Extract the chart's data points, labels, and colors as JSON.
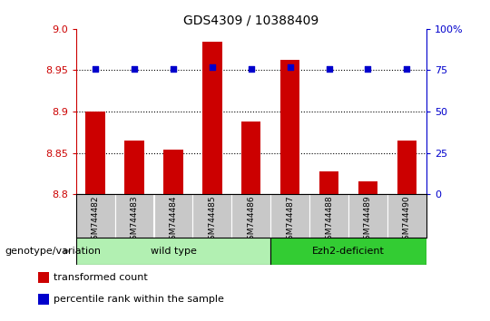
{
  "title": "GDS4309 / 10388409",
  "samples": [
    "GSM744482",
    "GSM744483",
    "GSM744484",
    "GSM744485",
    "GSM744486",
    "GSM744487",
    "GSM744488",
    "GSM744489",
    "GSM744490"
  ],
  "transformed_count": [
    8.9,
    8.865,
    8.854,
    8.985,
    8.888,
    8.962,
    8.828,
    8.815,
    8.865
  ],
  "percentile_rank": [
    76,
    76,
    76,
    77,
    76,
    77,
    76,
    76,
    76
  ],
  "ylim_left": [
    8.8,
    9.0
  ],
  "ylim_right": [
    0,
    100
  ],
  "yticks_left": [
    8.8,
    8.85,
    8.9,
    8.95,
    9.0
  ],
  "yticks_right": [
    0,
    25,
    50,
    75,
    100
  ],
  "groups": [
    {
      "label": "wild type",
      "start": 0,
      "end": 4,
      "color": "#b2f0b2"
    },
    {
      "label": "Ezh2-deficient",
      "start": 5,
      "end": 8,
      "color": "#33cc33"
    }
  ],
  "bar_color": "#CC0000",
  "dot_color": "#0000CC",
  "tick_bg": "#C8C8C8",
  "left_axis_color": "#CC0000",
  "right_axis_color": "#0000CC",
  "legend_items": [
    {
      "color": "#CC0000",
      "label": "transformed count"
    },
    {
      "color": "#0000CC",
      "label": "percentile rank within the sample"
    }
  ],
  "genotype_label": "genotype/variation",
  "bar_width": 0.5
}
